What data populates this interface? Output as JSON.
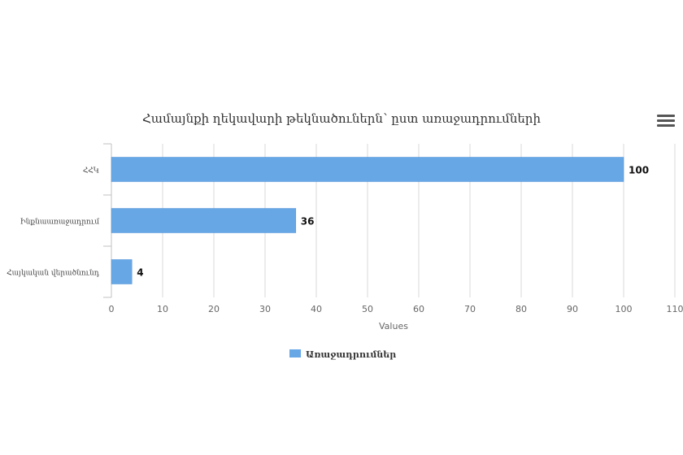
{
  "chart_data": {
    "type": "bar",
    "orientation": "horizontal",
    "title": "Համայնքի ղեկավարի թեկնածուներն՝ ըստ առաջադրումների",
    "categories": [
      "ՀՀԿ",
      "Ինքնաառաջադրում",
      "Հայկական վերածնունդ"
    ],
    "series": [
      {
        "name": "Առաջադրումներ",
        "values": [
          100,
          36,
          4
        ]
      }
    ],
    "xlabel": "Values",
    "xlim": [
      0,
      110
    ],
    "xticks": [
      0,
      10,
      20,
      30,
      40,
      50,
      60,
      70,
      80,
      90,
      100,
      110
    ],
    "data_labels": true,
    "grid": true,
    "legend": "bottom-center",
    "colors": {
      "bar": "#67a7e6",
      "bar_stroke": "#4e90d6",
      "grid": "#d9d9d9",
      "axis": "#c0c0c0",
      "text": "#333333"
    }
  },
  "menu": {
    "icon": "hamburger-menu-icon"
  }
}
